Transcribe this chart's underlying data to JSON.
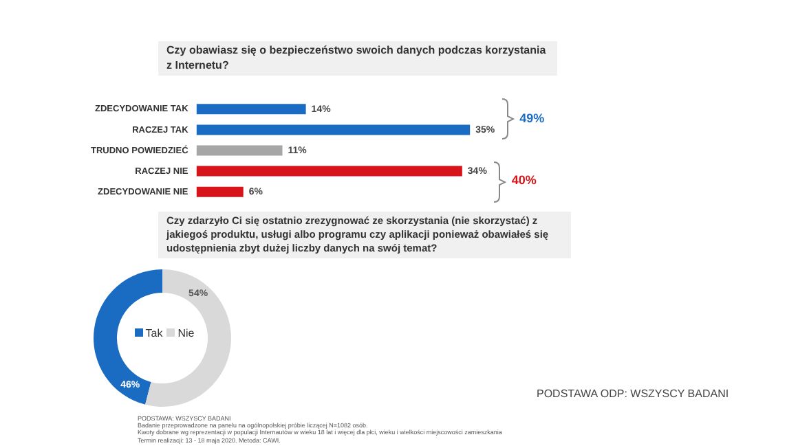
{
  "chart_data": [
    {
      "type": "bar",
      "orientation": "horizontal",
      "title": "Czy obawiasz się o bezpieczeństwo swoich danych podczas korzystania z Internetu?",
      "categories": [
        "ZDECYDOWANIE TAK",
        "RACZEJ TAK",
        "TRUDNO POWIEDZIEĆ",
        "RACZEJ NIE",
        "ZDECYDOWANIE NIE"
      ],
      "values": [
        14,
        35,
        11,
        34,
        6
      ],
      "colors": [
        "#1a6cc2",
        "#1a6cc2",
        "#a6a6a6",
        "#d7141a",
        "#d7141a"
      ],
      "value_labels": [
        "14%",
        "35%",
        "11%",
        "34%",
        "6%"
      ],
      "annotations": [
        "49%",
        "40%"
      ],
      "grid": false,
      "legend": false
    },
    {
      "type": "donut",
      "title": "Czy zdarzyło Ci się ostatnio zrezygnować ze skorzystania (nie skorzystać) z jakiegoś produktu, usługi albo programu czy aplikacji  ponieważ obawiałeś się udostępnienia zbyt dużej liczby danych na swój temat?",
      "categories": [
        "Tak",
        "Nie"
      ],
      "values": [
        46,
        54
      ],
      "colors": [
        "#1a6cc2",
        "#d9d9d9"
      ],
      "value_labels": [
        "46%",
        "54%"
      ],
      "legend": "center",
      "annotations": [
        "PODSTAWA ODP: WSZYSCY BADANI",
        "PODSTAWA: WSZYSCY BADANI",
        "Badanie przeprowadzone na panelu na ogólnopolskiej próbie liczącej N=1082 osób.",
        "Kwoty dobrane wg reprezentacji w populacji Internautów w wieku 18 lat i więcej dla płci, wieku i wielkości miejscowości zamieszkania",
        "Termin realizacji: 13 - 18 maja 2020. Metoda: CAWI."
      ]
    }
  ]
}
